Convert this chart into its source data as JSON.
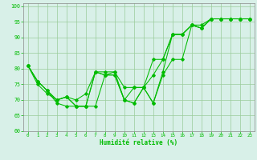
{
  "x": [
    0,
    1,
    2,
    3,
    4,
    5,
    6,
    7,
    8,
    9,
    10,
    11,
    12,
    13,
    14,
    15,
    16,
    17,
    18,
    19,
    20,
    21,
    22,
    23
  ],
  "line1": [
    81,
    76,
    73,
    70,
    71,
    70,
    72,
    79,
    79,
    79,
    74,
    74,
    74,
    83,
    83,
    91,
    91,
    94,
    93,
    96,
    96,
    96,
    96,
    96
  ],
  "line2": [
    81,
    76,
    73,
    70,
    71,
    68,
    68,
    79,
    78,
    78,
    70,
    74,
    74,
    78,
    83,
    91,
    91,
    94,
    93,
    96,
    96,
    96,
    96,
    96
  ],
  "line3": [
    81,
    76,
    73,
    69,
    68,
    68,
    68,
    79,
    78,
    79,
    70,
    69,
    74,
    69,
    79,
    91,
    91,
    94,
    93,
    96,
    96,
    96,
    96,
    96
  ],
  "line4": [
    81,
    75,
    72,
    70,
    71,
    68,
    68,
    68,
    78,
    78,
    70,
    69,
    74,
    69,
    78,
    83,
    83,
    94,
    94,
    96,
    96,
    96,
    96,
    96
  ],
  "line_color": "#00bb00",
  "bg_color": "#d8f0e8",
  "grid_color": "#99cc99",
  "xlabel": "Humidité relative (%)",
  "ylim": [
    60,
    101
  ],
  "xlim": [
    -0.5,
    23.5
  ],
  "yticks": [
    60,
    65,
    70,
    75,
    80,
    85,
    90,
    95,
    100
  ],
  "xticks": [
    0,
    1,
    2,
    3,
    4,
    5,
    6,
    7,
    8,
    9,
    10,
    11,
    12,
    13,
    14,
    15,
    16,
    17,
    18,
    19,
    20,
    21,
    22,
    23
  ]
}
